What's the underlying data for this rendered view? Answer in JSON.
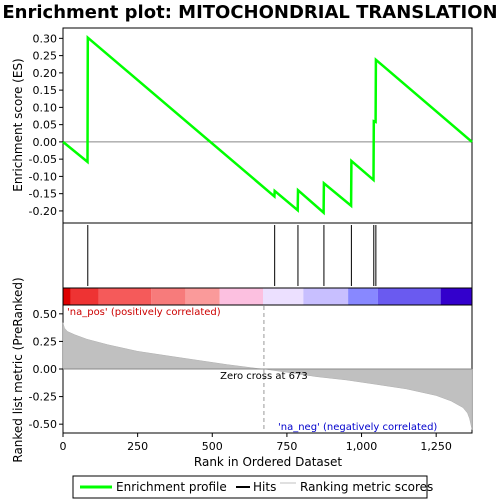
{
  "chart_data": {
    "type": "line",
    "title": "Enrichment plot: MITOCHONDRIAL TRANSLATION",
    "enrichment_panel": {
      "ylabel": "Enrichment score (ES)",
      "ylim": [
        -0.235,
        0.33
      ],
      "yticks": [
        "-0.20",
        "-0.15",
        "-0.10",
        "-0.05",
        "0.00",
        "0.05",
        "0.10",
        "0.15",
        "0.20",
        "0.25",
        "0.30"
      ],
      "ytick_values": [
        -0.2,
        -0.15,
        -0.1,
        -0.05,
        0.0,
        0.05,
        0.1,
        0.15,
        0.2,
        0.25,
        0.3
      ],
      "series": [
        {
          "name": "Enrichment profile",
          "color": "#00ff00",
          "x": [
            0,
            82,
            83,
            708,
            709,
            786,
            787,
            873,
            874,
            965,
            966,
            1040,
            1041,
            1047,
            1048,
            1370
          ],
          "y": [
            0.0,
            -0.058,
            0.302,
            -0.158,
            -0.142,
            -0.198,
            -0.14,
            -0.205,
            -0.12,
            -0.185,
            -0.055,
            -0.11,
            0.06,
            0.058,
            0.238,
            0.0
          ]
        }
      ]
    },
    "hits": {
      "name": "Hits",
      "positions": [
        83,
        709,
        787,
        874,
        966,
        1041,
        1048
      ]
    },
    "ranked_panel": {
      "xlabel": "Rank in Ordered Dataset",
      "ylabel": "Ranked list metric (PreRanked)",
      "ylim": [
        -0.58,
        0.58
      ],
      "yticks": [
        "-0.50",
        "-0.25",
        "0.00",
        "0.25",
        "0.50"
      ],
      "ytick_values": [
        -0.5,
        -0.25,
        0.0,
        0.25,
        0.5
      ],
      "xlim": [
        0,
        1370
      ],
      "xticks": [
        "0",
        "250",
        "500",
        "750",
        "1,000",
        "1,250"
      ],
      "xtick_values": [
        0,
        250,
        500,
        750,
        1000,
        1250
      ],
      "series_name": "Ranking metric scores",
      "curve_x": [
        0,
        5,
        15,
        40,
        80,
        150,
        250,
        350,
        450,
        550,
        650,
        673,
        750,
        850,
        950,
        1050,
        1150,
        1250,
        1300,
        1340,
        1355,
        1362,
        1366,
        1370
      ],
      "curve_y": [
        0.42,
        0.37,
        0.34,
        0.31,
        0.27,
        0.22,
        0.16,
        0.12,
        0.08,
        0.04,
        0.005,
        0.0,
        -0.03,
        -0.07,
        -0.1,
        -0.14,
        -0.18,
        -0.24,
        -0.29,
        -0.35,
        -0.4,
        -0.45,
        -0.5,
        -0.55
      ],
      "zero_cross_label": "Zero cross at 673",
      "zero_cross_x": 673,
      "pos_label": "'na_pos' (positively correlated)",
      "neg_label": "'na_neg' (negatively correlated)",
      "pos_color": "#cc0000",
      "neg_color": "#0000cc"
    },
    "color_bar": {
      "boundaries": [
        0,
        25,
        120,
        295,
        410,
        525,
        670,
        805,
        955,
        1055,
        1265,
        1370
      ],
      "colors": [
        "#dd0000",
        "#ee3333",
        "#f55a5a",
        "#f77b7b",
        "#fa9a9a",
        "#fcc0e0",
        "#ece0ff",
        "#c8bfff",
        "#8888ff",
        "#6a5af0",
        "#3300cc"
      ]
    },
    "legend": {
      "items": [
        {
          "label": "Enrichment profile",
          "color": "#00ff00"
        },
        {
          "label": "Hits",
          "color": "#000000"
        },
        {
          "label": "Ranking metric scores",
          "color": "#c0c0c0"
        }
      ]
    }
  }
}
